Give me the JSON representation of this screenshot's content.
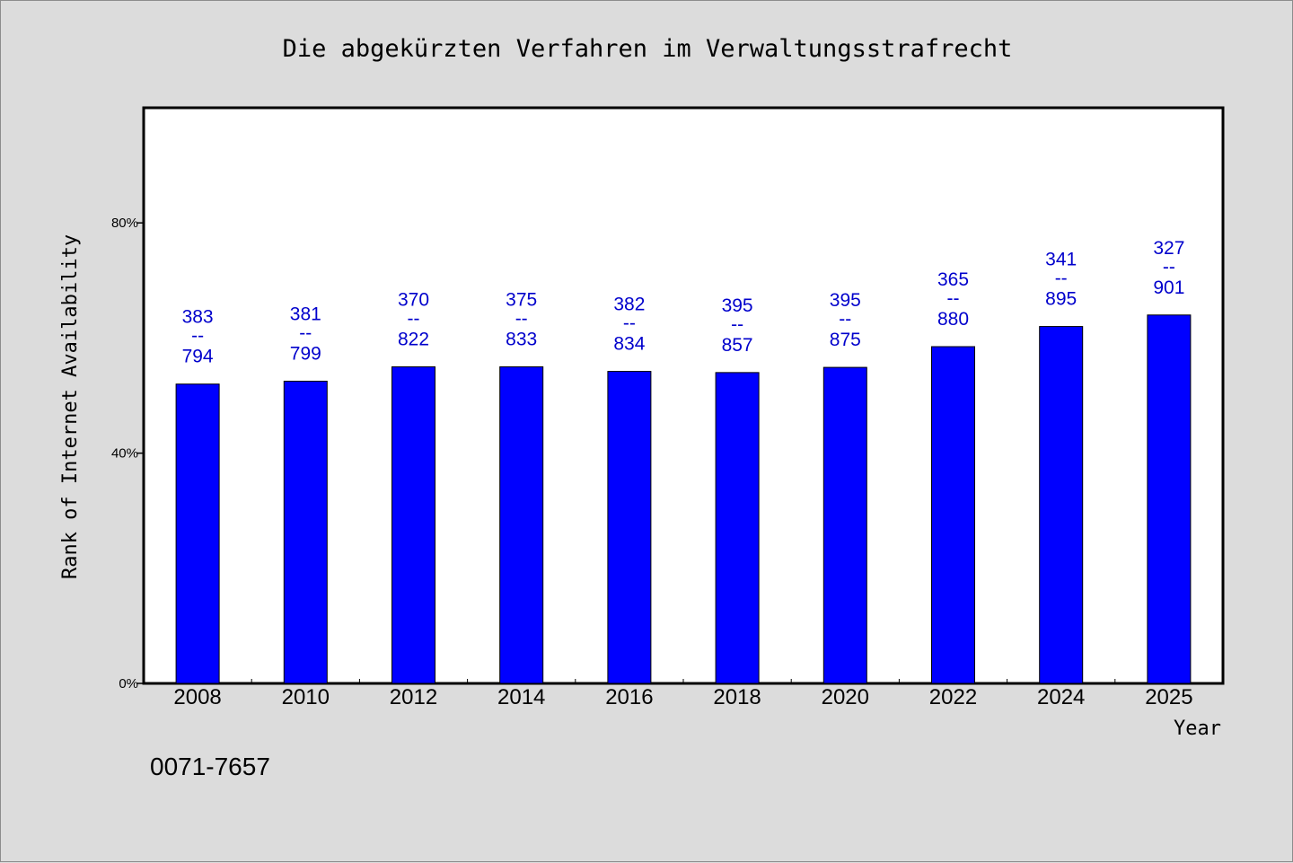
{
  "chart_data": {
    "type": "bar",
    "title": "Die abgekürzten Verfahren im Verwaltungsstrafrecht",
    "xlabel": "Year",
    "ylabel": "Rank of Internet Availability",
    "categories": [
      "2008",
      "2010",
      "2012",
      "2014",
      "2016",
      "2018",
      "2020",
      "2022",
      "2024",
      "2025"
    ],
    "values": [
      52,
      52.5,
      55,
      55,
      54.2,
      54,
      54.9,
      58.5,
      62,
      64
    ],
    "value_unit": "%",
    "ylim": [
      0,
      100
    ],
    "yticks": [
      {
        "value": 0,
        "label": "0%"
      },
      {
        "value": 40,
        "label": "40%"
      },
      {
        "value": 80,
        "label": "80%"
      }
    ],
    "data_labels": [
      {
        "top": "383",
        "sep": "--",
        "bottom": "794"
      },
      {
        "top": "381",
        "sep": "--",
        "bottom": "799"
      },
      {
        "top": "370",
        "sep": "--",
        "bottom": "822"
      },
      {
        "top": "375",
        "sep": "--",
        "bottom": "833"
      },
      {
        "top": "382",
        "sep": "--",
        "bottom": "834"
      },
      {
        "top": "395",
        "sep": "--",
        "bottom": "857"
      },
      {
        "top": "395",
        "sep": "--",
        "bottom": "875"
      },
      {
        "top": "365",
        "sep": "--",
        "bottom": "880"
      },
      {
        "top": "341",
        "sep": "--",
        "bottom": "895"
      },
      {
        "top": "327",
        "sep": "--",
        "bottom": "901"
      }
    ],
    "grid": false,
    "legend": "none",
    "colors": {
      "bar": "#0000ff",
      "label": "#0000cc",
      "background": "#dcdcdc",
      "plot_area": "#ffffff"
    }
  },
  "footnote": "0071-7657"
}
